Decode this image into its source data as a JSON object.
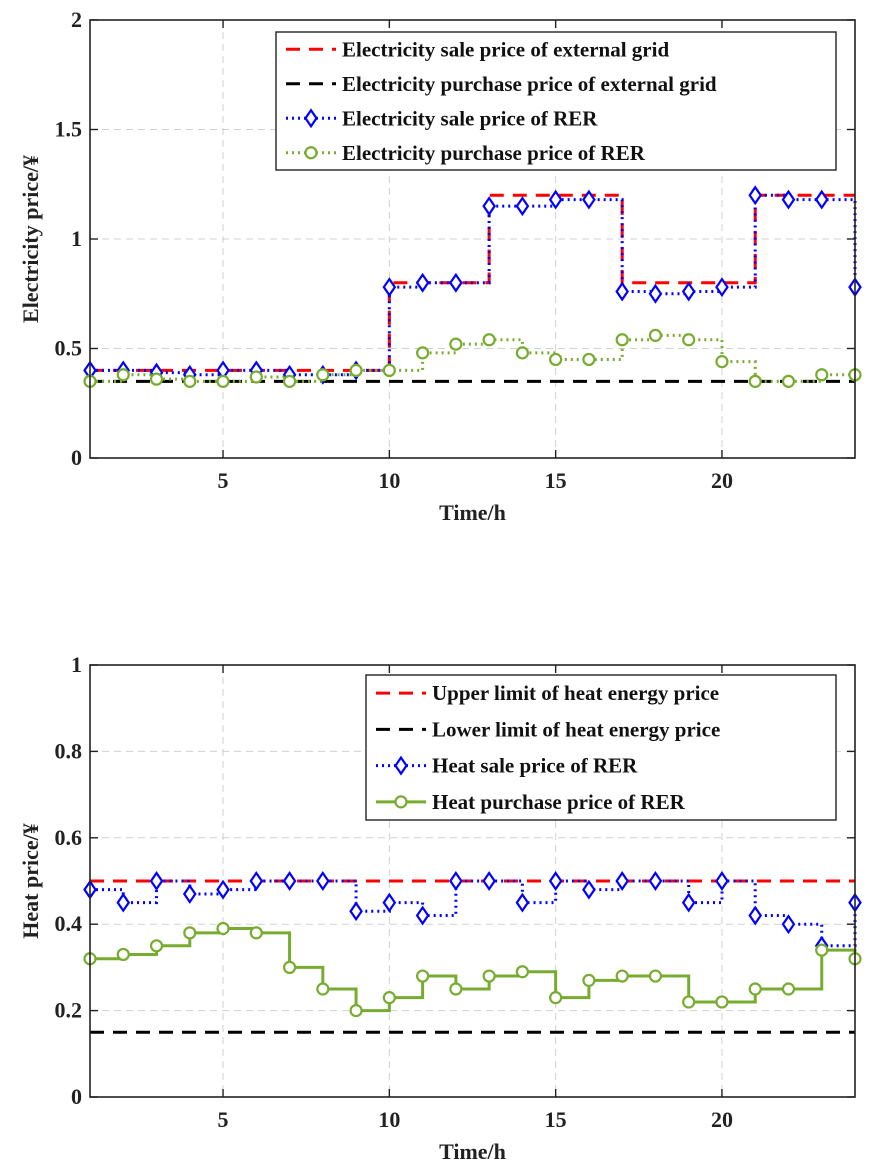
{
  "chart_data": [
    {
      "type": "line",
      "step": true,
      "title": "",
      "xlabel": "Time/h",
      "ylabel": "Electricity price/¥",
      "xlim": [
        1,
        24
      ],
      "ylim": [
        0,
        2
      ],
      "xticks": [
        5,
        10,
        15,
        20
      ],
      "yticks": [
        0,
        0.5,
        1,
        1.5,
        2
      ],
      "ytick_labels": [
        "0",
        "0.5",
        "1",
        "1.5",
        "2"
      ],
      "grid": true,
      "legend_position": "top-right",
      "x": [
        1,
        2,
        3,
        4,
        5,
        6,
        7,
        8,
        9,
        10,
        11,
        12,
        13,
        14,
        15,
        16,
        17,
        18,
        19,
        20,
        21,
        22,
        23,
        24
      ],
      "series": [
        {
          "name": "Electricity sale price of external grid",
          "color": "#ff0000",
          "style": "dashed",
          "marker": "none",
          "values": [
            0.4,
            0.4,
            0.4,
            0.4,
            0.4,
            0.4,
            0.4,
            0.4,
            0.4,
            0.8,
            0.8,
            0.8,
            1.2,
            1.2,
            1.2,
            1.2,
            0.8,
            0.8,
            0.8,
            0.8,
            1.2,
            1.2,
            1.2,
            1.2
          ]
        },
        {
          "name": "Electricity purchase price of external grid",
          "color": "#000000",
          "style": "dashed",
          "marker": "none",
          "values": [
            0.35,
            0.35,
            0.35,
            0.35,
            0.35,
            0.35,
            0.35,
            0.35,
            0.35,
            0.35,
            0.35,
            0.35,
            0.35,
            0.35,
            0.35,
            0.35,
            0.35,
            0.35,
            0.35,
            0.35,
            0.35,
            0.35,
            0.35,
            0.35
          ]
        },
        {
          "name": "Electricity sale price of RER",
          "color": "#0000ff",
          "style": "dotted",
          "marker": "diamond",
          "values": [
            0.4,
            0.4,
            0.39,
            0.38,
            0.4,
            0.4,
            0.38,
            0.38,
            0.4,
            0.78,
            0.8,
            0.8,
            1.15,
            1.15,
            1.18,
            1.18,
            0.76,
            0.75,
            0.76,
            0.78,
            1.2,
            1.18,
            1.18,
            0.78
          ]
        },
        {
          "name": "Electricity purchase price of RER",
          "color": "#77ac30",
          "style": "dotted",
          "marker": "circle",
          "values": [
            0.35,
            0.38,
            0.36,
            0.35,
            0.35,
            0.37,
            0.35,
            0.38,
            0.4,
            0.4,
            0.48,
            0.52,
            0.54,
            0.48,
            0.45,
            0.45,
            0.54,
            0.56,
            0.54,
            0.44,
            0.35,
            0.35,
            0.38,
            0.38
          ]
        }
      ]
    },
    {
      "type": "line",
      "step": true,
      "title": "",
      "xlabel": "Time/h",
      "ylabel": "Heat price/¥",
      "xlim": [
        1,
        24
      ],
      "ylim": [
        0,
        1
      ],
      "xticks": [
        5,
        10,
        15,
        20
      ],
      "yticks": [
        0,
        0.2,
        0.4,
        0.6,
        0.8,
        1
      ],
      "ytick_labels": [
        "0",
        "0.2",
        "0.4",
        "0.6",
        "0.8",
        "1"
      ],
      "grid": true,
      "legend_position": "top-right",
      "x": [
        1,
        2,
        3,
        4,
        5,
        6,
        7,
        8,
        9,
        10,
        11,
        12,
        13,
        14,
        15,
        16,
        17,
        18,
        19,
        20,
        21,
        22,
        23,
        24
      ],
      "series": [
        {
          "name": "Upper limit of heat energy price",
          "color": "#ff0000",
          "style": "dashed",
          "marker": "none",
          "values": [
            0.5,
            0.5,
            0.5,
            0.5,
            0.5,
            0.5,
            0.5,
            0.5,
            0.5,
            0.5,
            0.5,
            0.5,
            0.5,
            0.5,
            0.5,
            0.5,
            0.5,
            0.5,
            0.5,
            0.5,
            0.5,
            0.5,
            0.5,
            0.5
          ]
        },
        {
          "name": "Lower limit of heat energy price",
          "color": "#000000",
          "style": "dashed",
          "marker": "none",
          "values": [
            0.15,
            0.15,
            0.15,
            0.15,
            0.15,
            0.15,
            0.15,
            0.15,
            0.15,
            0.15,
            0.15,
            0.15,
            0.15,
            0.15,
            0.15,
            0.15,
            0.15,
            0.15,
            0.15,
            0.15,
            0.15,
            0.15,
            0.15,
            0.15
          ]
        },
        {
          "name": "Heat sale price of RER",
          "color": "#0000ff",
          "style": "dotted",
          "marker": "diamond",
          "values": [
            0.48,
            0.45,
            0.5,
            0.47,
            0.48,
            0.5,
            0.5,
            0.5,
            0.43,
            0.45,
            0.42,
            0.5,
            0.5,
            0.45,
            0.5,
            0.48,
            0.5,
            0.5,
            0.45,
            0.5,
            0.42,
            0.4,
            0.35,
            0.45
          ]
        },
        {
          "name": "Heat purchase price of RER",
          "color": "#77ac30",
          "style": "solid",
          "marker": "circle",
          "values": [
            0.32,
            0.33,
            0.35,
            0.38,
            0.39,
            0.38,
            0.3,
            0.25,
            0.2,
            0.23,
            0.28,
            0.25,
            0.28,
            0.29,
            0.23,
            0.27,
            0.28,
            0.28,
            0.22,
            0.22,
            0.25,
            0.25,
            0.34,
            0.32
          ]
        }
      ]
    }
  ]
}
